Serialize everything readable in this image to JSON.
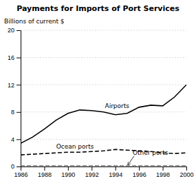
{
  "chart_data": {
    "type": "line",
    "title": "Payments for Imports of Port Services",
    "ylabel": "Billions of current $",
    "x": [
      1986,
      1987,
      1988,
      1989,
      1990,
      1991,
      1992,
      1993,
      1994,
      1995,
      1996,
      1997,
      1998,
      1999,
      2000
    ],
    "series": [
      {
        "name": "Airports",
        "color": "#000000",
        "line_style": "solid",
        "values": [
          3.4,
          4.3,
          5.5,
          6.8,
          7.8,
          8.3,
          8.2,
          8.0,
          7.6,
          7.8,
          8.7,
          9.0,
          8.9,
          10.2,
          12.0
        ]
      },
      {
        "name": "Ocean ports",
        "color": "#000000",
        "line_style": "dashed",
        "values": [
          1.7,
          1.8,
          1.9,
          2.0,
          2.1,
          2.1,
          2.2,
          2.3,
          2.5,
          2.4,
          2.3,
          2.2,
          2.0,
          1.9,
          2.0
        ]
      },
      {
        "name": "Other ports",
        "color": "#555555",
        "line_style": "dashed",
        "values": [
          0.12,
          0.12,
          0.12,
          0.12,
          0.12,
          0.12,
          0.12,
          0.12,
          0.12,
          0.12,
          0.12,
          0.12,
          0.12,
          0.12,
          0.12
        ]
      }
    ],
    "xlim": [
      1986,
      2000
    ],
    "xticks": [
      1986,
      1988,
      1990,
      1992,
      1994,
      1996,
      1998,
      2000
    ],
    "ylim": [
      0,
      20
    ],
    "yticks": [
      0,
      4,
      8,
      12,
      16,
      20
    ],
    "grid": true
  }
}
